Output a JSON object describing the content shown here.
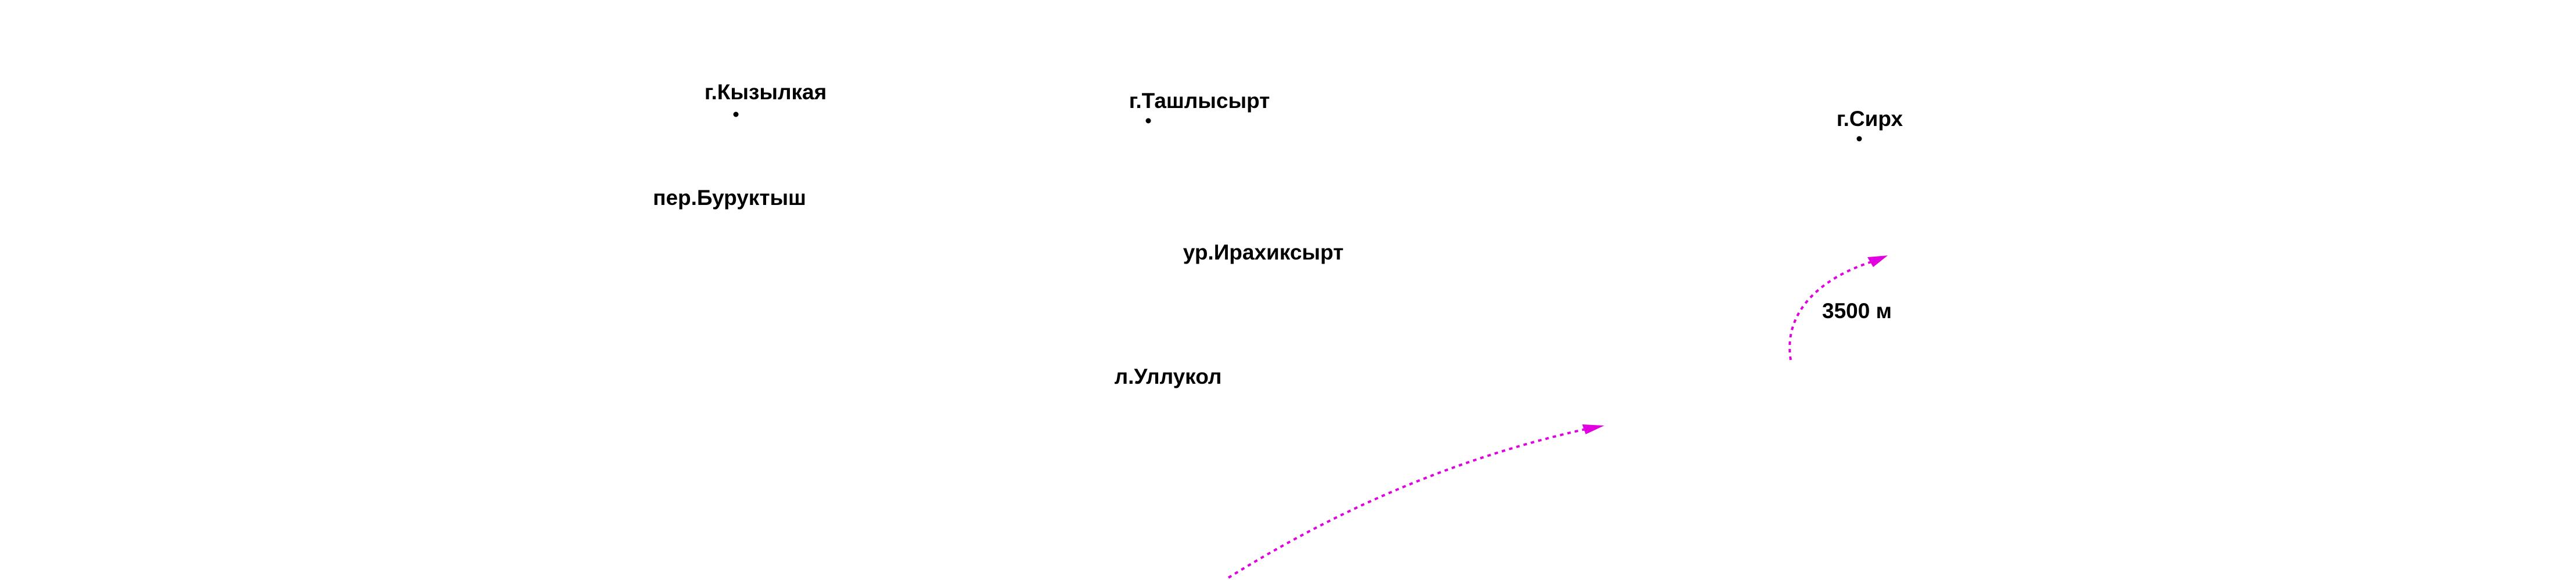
{
  "places": [
    "г.Кызылкая",
    "г.Ташлысырт",
    "г.Сирх",
    "пер.Буруктыш",
    "ур.Ирахиксырт",
    "л.Уллукол"
  ],
  "route_label": "3500 м"
}
